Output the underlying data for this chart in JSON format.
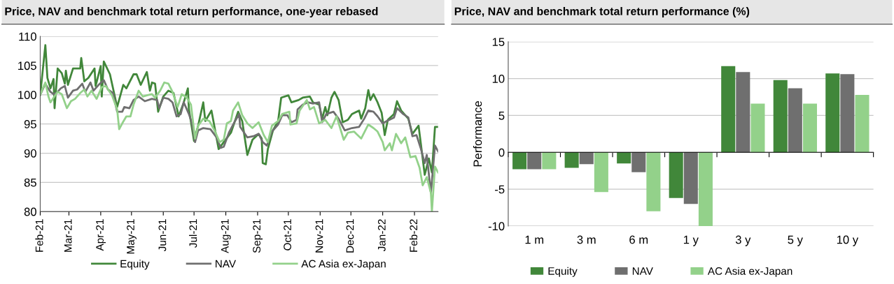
{
  "chart_data": [
    {
      "type": "line",
      "title": "Price, NAV and benchmark total return performance, one-year rebased",
      "xlim": [
        "2021-02-01",
        "2022-02-24"
      ],
      "xticks": [
        {
          "value": "2021-02-01",
          "label": "Feb-21"
        },
        {
          "value": "2021-03-01",
          "label": "Mar-21"
        },
        {
          "value": "2021-04-01",
          "label": "Apr-21"
        },
        {
          "value": "2021-05-01",
          "label": "May-21"
        },
        {
          "value": "2021-06-01",
          "label": "Jun-21"
        },
        {
          "value": "2021-07-01",
          "label": "Jul-21"
        },
        {
          "value": "2021-08-01",
          "label": "Aug-21"
        },
        {
          "value": "2021-09-01",
          "label": "Sep-21"
        },
        {
          "value": "2021-10-01",
          "label": "Oct-21"
        },
        {
          "value": "2021-11-01",
          "label": "Nov-21"
        },
        {
          "value": "2021-12-01",
          "label": "Dec-21"
        },
        {
          "value": "2022-01-01",
          "label": "Jan-22"
        },
        {
          "value": "2022-02-01",
          "label": "Feb-22"
        }
      ],
      "ylim": [
        80,
        110
      ],
      "yticks": [
        80,
        85,
        90,
        95,
        100,
        105,
        110
      ],
      "grid": "y",
      "legend": "bottom",
      "marker": "none",
      "line_style": "solid",
      "series": [
        {
          "name": "Equity",
          "color": "#41873a",
          "x": [
            "2021-02-01",
            "2021-02-06",
            "2021-02-08",
            "2021-02-11",
            "2021-02-14",
            "2021-02-15",
            "2021-02-18",
            "2021-02-22",
            "2021-02-25",
            "2021-02-26",
            "2021-02-28",
            "2021-03-05",
            "2021-03-12",
            "2021-03-13",
            "2021-03-16",
            "2021-03-20",
            "2021-03-26",
            "2021-03-27",
            "2021-04-01",
            "2021-04-02",
            "2021-04-04",
            "2021-04-10",
            "2021-04-17",
            "2021-04-23",
            "2021-04-26",
            "2021-05-03",
            "2021-05-06",
            "2021-05-10",
            "2021-05-16",
            "2021-05-19",
            "2021-05-21",
            "2021-05-24",
            "2021-05-27",
            "2021-06-01",
            "2021-06-06",
            "2021-06-11",
            "2021-06-16",
            "2021-06-21",
            "2021-06-25",
            "2021-06-26",
            "2021-07-01",
            "2021-07-05",
            "2021-07-10",
            "2021-07-12",
            "2021-07-18",
            "2021-07-25",
            "2021-07-30",
            "2021-08-06",
            "2021-08-13",
            "2021-08-17",
            "2021-08-22",
            "2021-08-27",
            "2021-09-02",
            "2021-09-05",
            "2021-09-06",
            "2021-09-09",
            "2021-09-11",
            "2021-09-16",
            "2021-09-21",
            "2021-09-24",
            "2021-10-01",
            "2021-10-04",
            "2021-10-11",
            "2021-10-15",
            "2021-10-22",
            "2021-10-25",
            "2021-10-31",
            "2021-11-03",
            "2021-11-06",
            "2021-11-08",
            "2021-11-12",
            "2021-11-15",
            "2021-11-19",
            "2021-11-23",
            "2021-11-28",
            "2021-12-02",
            "2021-12-09",
            "2021-12-11",
            "2021-12-15",
            "2021-12-18",
            "2021-12-20",
            "2021-12-23",
            "2021-12-27",
            "2021-12-31",
            "2022-01-03",
            "2022-01-06",
            "2022-01-12",
            "2022-01-15",
            "2022-01-19",
            "2022-01-26",
            "2022-01-30",
            "2022-02-05",
            "2022-02-11",
            "2022-02-15",
            "2022-02-18",
            "2022-02-21",
            "2022-02-24"
          ],
          "values": [
            100,
            108.5,
            102.9,
            101.1,
            102.7,
            97.7,
            104.5,
            103.7,
            101.9,
            104.1,
            101.7,
            104.5,
            104.5,
            106.3,
            102.3,
            102.9,
            104.5,
            101.5,
            104.9,
            99.7,
            105.7,
            103.5,
            97.9,
            101.7,
            101.1,
            103.5,
            103.5,
            101.7,
            103.9,
            100.7,
            102.1,
            101.9,
            97.1,
            99.7,
            100.7,
            100.3,
            96.3,
            98.7,
            101.1,
            97.5,
            92.1,
            94.7,
            98.7,
            95.5,
            97.3,
            90.7,
            91.9,
            93.5,
            97.1,
            95.5,
            89.7,
            92.3,
            93.3,
            92.5,
            88.3,
            88.1,
            90.7,
            93.9,
            95.5,
            99.5,
            99.9,
            98.7,
            99.1,
            99.5,
            99.7,
            98.7,
            98.3,
            95.9,
            97.9,
            96.5,
            99.5,
            100.5,
            99.1,
            95.3,
            95.7,
            96.7,
            97.3,
            95.9,
            97.7,
            100.8,
            99.1,
            100.1,
            98.7,
            96.9,
            93.1,
            95.7,
            96.7,
            98.9,
            97.3,
            95.9,
            93.3,
            94.7,
            86.3,
            89.1,
            86.7,
            94.5,
            94.5
          ]
        },
        {
          "name": "NAV",
          "color": "#6f6f6f",
          "x": [
            "2021-02-01",
            "2021-02-06",
            "2021-02-08",
            "2021-02-11",
            "2021-02-14",
            "2021-02-18",
            "2021-02-21",
            "2021-02-25",
            "2021-02-28",
            "2021-03-05",
            "2021-03-09",
            "2021-03-14",
            "2021-03-17",
            "2021-03-22",
            "2021-03-25",
            "2021-03-30",
            "2021-04-04",
            "2021-04-08",
            "2021-04-13",
            "2021-04-17",
            "2021-04-22",
            "2021-04-24",
            "2021-04-29",
            "2021-05-03",
            "2021-05-08",
            "2021-05-14",
            "2021-05-21",
            "2021-05-26",
            "2021-05-28",
            "2021-06-01",
            "2021-06-06",
            "2021-06-10",
            "2021-06-14",
            "2021-06-18",
            "2021-06-21",
            "2021-06-26",
            "2021-06-29",
            "2021-07-02",
            "2021-07-05",
            "2021-07-10",
            "2021-07-17",
            "2021-07-23",
            "2021-07-27",
            "2021-07-30",
            "2021-08-04",
            "2021-08-10",
            "2021-08-14",
            "2021-08-15",
            "2021-08-22",
            "2021-08-28",
            "2021-09-02",
            "2021-09-06",
            "2021-09-10",
            "2021-09-15",
            "2021-09-21",
            "2021-09-25",
            "2021-09-30",
            "2021-10-04",
            "2021-10-09",
            "2021-10-10",
            "2021-10-15",
            "2021-10-20",
            "2021-10-25",
            "2021-10-31",
            "2021-11-03",
            "2021-11-07",
            "2021-11-14",
            "2021-11-19",
            "2021-11-25",
            "2021-12-02",
            "2021-12-09",
            "2021-12-14",
            "2021-12-18",
            "2021-12-23",
            "2021-12-27",
            "2022-01-01",
            "2022-01-05",
            "2022-01-12",
            "2022-01-15",
            "2022-01-21",
            "2022-01-26",
            "2022-01-30",
            "2022-02-03",
            "2022-02-07",
            "2022-02-11",
            "2022-02-13",
            "2022-02-17",
            "2022-02-21",
            "2022-02-24"
          ],
          "values": [
            100,
            101.9,
            101.3,
            100.5,
            100.1,
            100.5,
            101.1,
            101.5,
            99.5,
            100.7,
            100.9,
            101.9,
            100.5,
            102.1,
            100.7,
            101.7,
            102.5,
            100.9,
            100.3,
            97.1,
            97.1,
            97.9,
            97.7,
            99.1,
            99.7,
            98.9,
            99.3,
            99.1,
            97.7,
            99.5,
            99.3,
            98.7,
            96.3,
            96.7,
            98.7,
            96.7,
            95.1,
            91.9,
            93.9,
            94.3,
            94.1,
            92.7,
            90.9,
            91.1,
            93.5,
            95.5,
            96.7,
            94.5,
            92.7,
            92.9,
            93.3,
            91.9,
            91.3,
            93.7,
            94.9,
            96.5,
            96.5,
            95.3,
            95.7,
            97.5,
            98.3,
            98.7,
            98.5,
            98.7,
            95.3,
            96.7,
            97.1,
            95.9,
            93.9,
            94.3,
            94.5,
            95.9,
            97.3,
            97.1,
            96.3,
            95.1,
            95.5,
            96.1,
            97.7,
            96.7,
            96.1,
            92.9,
            93.1,
            90.9,
            88.3,
            89.7,
            83.2,
            91.3,
            90.3
          ]
        },
        {
          "name": "AC Asia ex-Japan",
          "color": "#93d18a",
          "x": [
            "2021-02-01",
            "2021-02-04",
            "2021-02-06",
            "2021-02-09",
            "2021-02-11",
            "2021-02-14",
            "2021-02-18",
            "2021-02-22",
            "2021-02-27",
            "2021-03-03",
            "2021-03-07",
            "2021-03-12",
            "2021-03-16",
            "2021-03-19",
            "2021-03-23",
            "2021-03-28",
            "2021-04-02",
            "2021-04-06",
            "2021-04-12",
            "2021-04-17",
            "2021-04-19",
            "2021-04-22",
            "2021-04-26",
            "2021-04-30",
            "2021-05-03",
            "2021-05-08",
            "2021-05-12",
            "2021-05-16",
            "2021-05-21",
            "2021-05-24",
            "2021-05-29",
            "2021-06-02",
            "2021-06-06",
            "2021-06-10",
            "2021-06-15",
            "2021-06-19",
            "2021-06-24",
            "2021-06-28",
            "2021-07-02",
            "2021-07-05",
            "2021-07-10",
            "2021-07-16",
            "2021-07-21",
            "2021-07-26",
            "2021-07-30",
            "2021-08-02",
            "2021-08-06",
            "2021-08-08",
            "2021-08-13",
            "2021-08-17",
            "2021-08-22",
            "2021-08-27",
            "2021-09-02",
            "2021-09-07",
            "2021-09-11",
            "2021-09-15",
            "2021-09-21",
            "2021-09-25",
            "2021-10-02",
            "2021-10-03",
            "2021-10-09",
            "2021-10-12",
            "2021-10-19",
            "2021-10-22",
            "2021-10-26",
            "2021-10-31",
            "2021-11-06",
            "2021-11-12",
            "2021-11-17",
            "2021-11-24",
            "2021-11-28",
            "2021-12-04",
            "2021-12-11",
            "2021-12-18",
            "2021-12-23",
            "2021-12-27",
            "2022-01-01",
            "2022-01-03",
            "2022-01-08",
            "2022-01-10",
            "2022-01-14",
            "2022-01-19",
            "2022-01-23",
            "2022-01-28",
            "2022-02-02",
            "2022-02-06",
            "2022-02-09",
            "2022-02-13",
            "2022-02-17",
            "2022-02-18",
            "2022-02-21",
            "2022-02-24"
          ],
          "values": [
            100,
            101.3,
            102.1,
            99.7,
            98.7,
            99.5,
            100.5,
            100.1,
            97.7,
            98.9,
            99.3,
            100.3,
            100.9,
            99.7,
            100.7,
            99.3,
            101.3,
            101.5,
            99.9,
            97.5,
            94.1,
            95.1,
            96.3,
            96.3,
            98.3,
            100.7,
            99.7,
            99.9,
            100.1,
            99.5,
            100.7,
            102.1,
            101.9,
            100.5,
            97.9,
            100.1,
            99.5,
            98.3,
            92.5,
            94.7,
            95.9,
            95.5,
            93.9,
            91.9,
            92.3,
            95.1,
            95.5,
            97.3,
            98.7,
            96.5,
            95.1,
            94.3,
            95.3,
            93.1,
            91.9,
            94.7,
            95.5,
            96.7,
            97.1,
            94.9,
            95.1,
            97.3,
            99.1,
            97.5,
            97.9,
            95.1,
            95.7,
            94.3,
            96.3,
            92.3,
            93.5,
            93.7,
            92.5,
            94.9,
            94.3,
            93.7,
            91.9,
            90.5,
            91.7,
            90.5,
            93.3,
            91.7,
            92.7,
            89.3,
            89.5,
            87.5,
            84.5,
            85.9,
            83.2,
            80.0,
            87.7,
            86.7
          ]
        }
      ]
    },
    {
      "type": "bar",
      "title": "Price, NAV and benchmark total return performance (%)",
      "ylabel": "Performance",
      "categories": [
        "1 m",
        "3 m",
        "6 m",
        "1 y",
        "3 y",
        "5 y",
        "10 y"
      ],
      "ylim": [
        -10,
        15
      ],
      "yticks": [
        -10,
        -5,
        0,
        5,
        10,
        15
      ],
      "grid": "y",
      "legend": "bottom",
      "series": [
        {
          "name": "Equity",
          "color": "#41873a",
          "values": [
            -2.3,
            -2.1,
            -1.5,
            -6.2,
            11.7,
            9.8,
            10.7
          ]
        },
        {
          "name": "NAV",
          "color": "#6f6f6f",
          "values": [
            -2.3,
            -1.6,
            -2.7,
            -7.0,
            10.9,
            8.7,
            10.6
          ]
        },
        {
          "name": "AC Asia ex-Japan",
          "color": "#93d18a",
          "values": [
            -2.3,
            -5.4,
            -8.0,
            -10.0,
            6.6,
            6.6,
            7.8
          ]
        }
      ]
    }
  ]
}
